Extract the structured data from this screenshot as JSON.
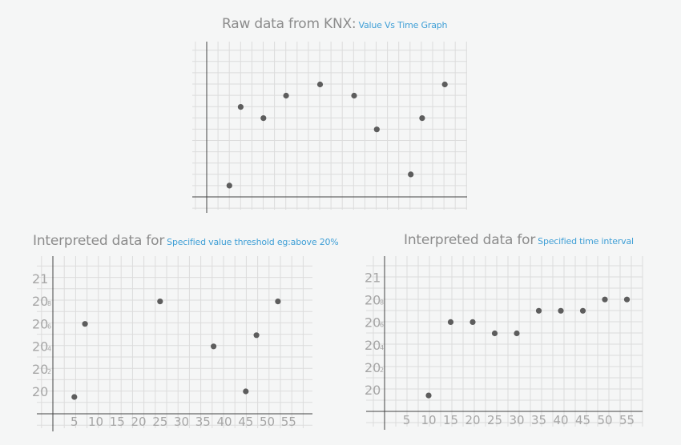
{
  "charts": {
    "raw": {
      "title_main": "Raw data from KNX:",
      "title_sub": "Value Vs Time Graph"
    },
    "threshold": {
      "title_main": "Interpreted data for",
      "title_sub": "Specified value threshold eg:above 20%"
    },
    "interval": {
      "title_main": "Interpreted data for",
      "title_sub": "Specified time interval"
    }
  },
  "colors": {
    "background": "#f5f6f6",
    "grid": "#dcdcdc",
    "axis": "#444444",
    "point": "#5d5d5d",
    "tick_text": "#a6a6a6",
    "title": "#8c8c8c",
    "subtitle": "#3f9fd6"
  },
  "chart_data": [
    {
      "type": "scatter",
      "title": "Raw data from KNX: Value Vs Time Graph",
      "grid": true,
      "xlim": [
        0,
        22
      ],
      "ylim": [
        -0.5,
        13.5
      ],
      "series": [
        {
          "x": [
            2,
            3,
            5,
            7,
            10,
            13,
            15,
            18,
            19,
            21
          ],
          "y": [
            1,
            8,
            7,
            9,
            10,
            9,
            6,
            2,
            7,
            10
          ]
        }
      ]
    },
    {
      "type": "scatter",
      "title": "Interpreted data for Specified value threshold eg:above 20%",
      "grid": true,
      "xlim": [
        0,
        57
      ],
      "ylim": [
        19.8,
        21.13
      ],
      "xticks": [
        "5",
        "10",
        "15",
        "20",
        "25",
        "30",
        "35",
        "40",
        "45",
        "50",
        "55"
      ],
      "yticks": [
        {
          "main": "20",
          "sub": ""
        },
        {
          "main": "20",
          "sub": "2"
        },
        {
          "main": "20",
          "sub": "4"
        },
        {
          "main": "20",
          "sub": "6"
        },
        {
          "main": "20",
          "sub": "8"
        },
        {
          "main": "21",
          "sub": ""
        }
      ],
      "series": [
        {
          "x": [
            5,
            7.5,
            25,
            37.5,
            45,
            47.5,
            52.5
          ],
          "y": [
            19.95,
            20.6,
            20.8,
            20.4,
            20.0,
            20.5,
            20.8
          ]
        }
      ]
    },
    {
      "type": "scatter",
      "title": "Interpreted data for Specified time interval",
      "grid": true,
      "xlim": [
        0,
        57
      ],
      "ylim": [
        19.8,
        21.13
      ],
      "xticks": [
        "5",
        "10",
        "15",
        "20",
        "25",
        "30",
        "35",
        "40",
        "45",
        "50",
        "55"
      ],
      "yticks": [
        {
          "main": "20",
          "sub": ""
        },
        {
          "main": "20",
          "sub": "2"
        },
        {
          "main": "20",
          "sub": "4"
        },
        {
          "main": "20",
          "sub": "6"
        },
        {
          "main": "20",
          "sub": "8"
        },
        {
          "main": "21",
          "sub": ""
        }
      ],
      "series": [
        {
          "x": [
            10,
            15,
            20,
            25,
            30,
            35,
            40,
            45,
            50,
            55
          ],
          "y": [
            19.95,
            20.6,
            20.6,
            20.5,
            20.5,
            20.7,
            20.7,
            20.7,
            20.8,
            20.8
          ]
        }
      ]
    }
  ]
}
